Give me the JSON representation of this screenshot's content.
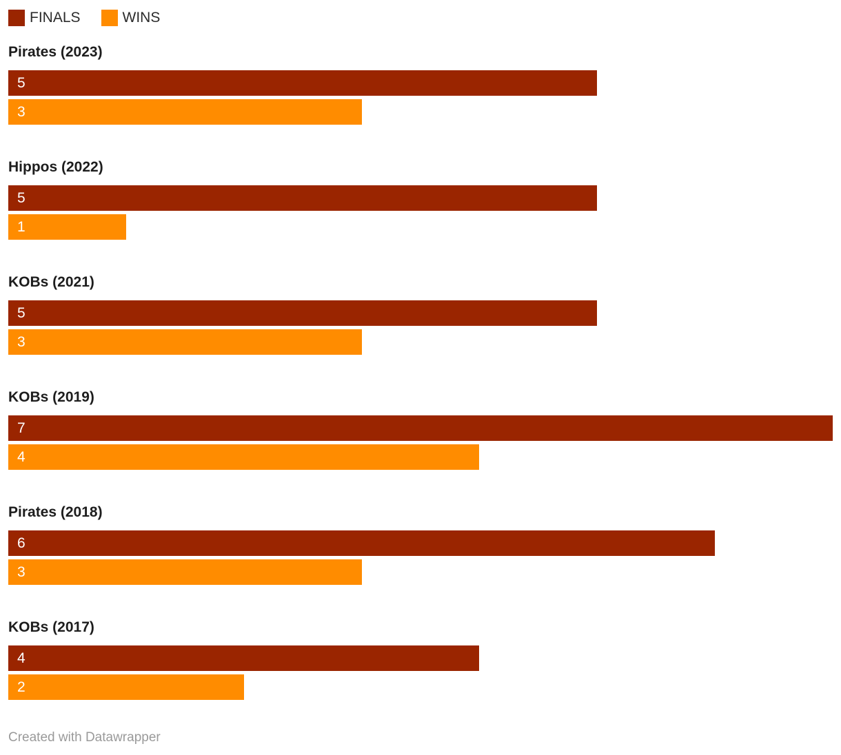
{
  "legend": {
    "finals_label": "FINALS",
    "wins_label": "WINS"
  },
  "colors": {
    "finals": "#9a2500",
    "wins": "#ff8c00"
  },
  "footer": {
    "text": "Created with Datawrapper"
  },
  "chart_data": {
    "type": "bar",
    "orientation": "horizontal",
    "title": "",
    "xlabel": "",
    "ylabel": "",
    "xlim": [
      0,
      7
    ],
    "grid": false,
    "legend_position": "top",
    "categories": [
      "Pirates (2023)",
      "Hippos (2022)",
      "KOBs (2021)",
      "KOBs (2019)",
      "Pirates (2018)",
      "KOBs (2017)"
    ],
    "series": [
      {
        "name": "FINALS",
        "color": "#9a2500",
        "values": [
          5,
          5,
          5,
          7,
          6,
          4
        ]
      },
      {
        "name": "WINS",
        "color": "#ff8c00",
        "values": [
          3,
          1,
          3,
          4,
          3,
          2
        ]
      }
    ]
  }
}
